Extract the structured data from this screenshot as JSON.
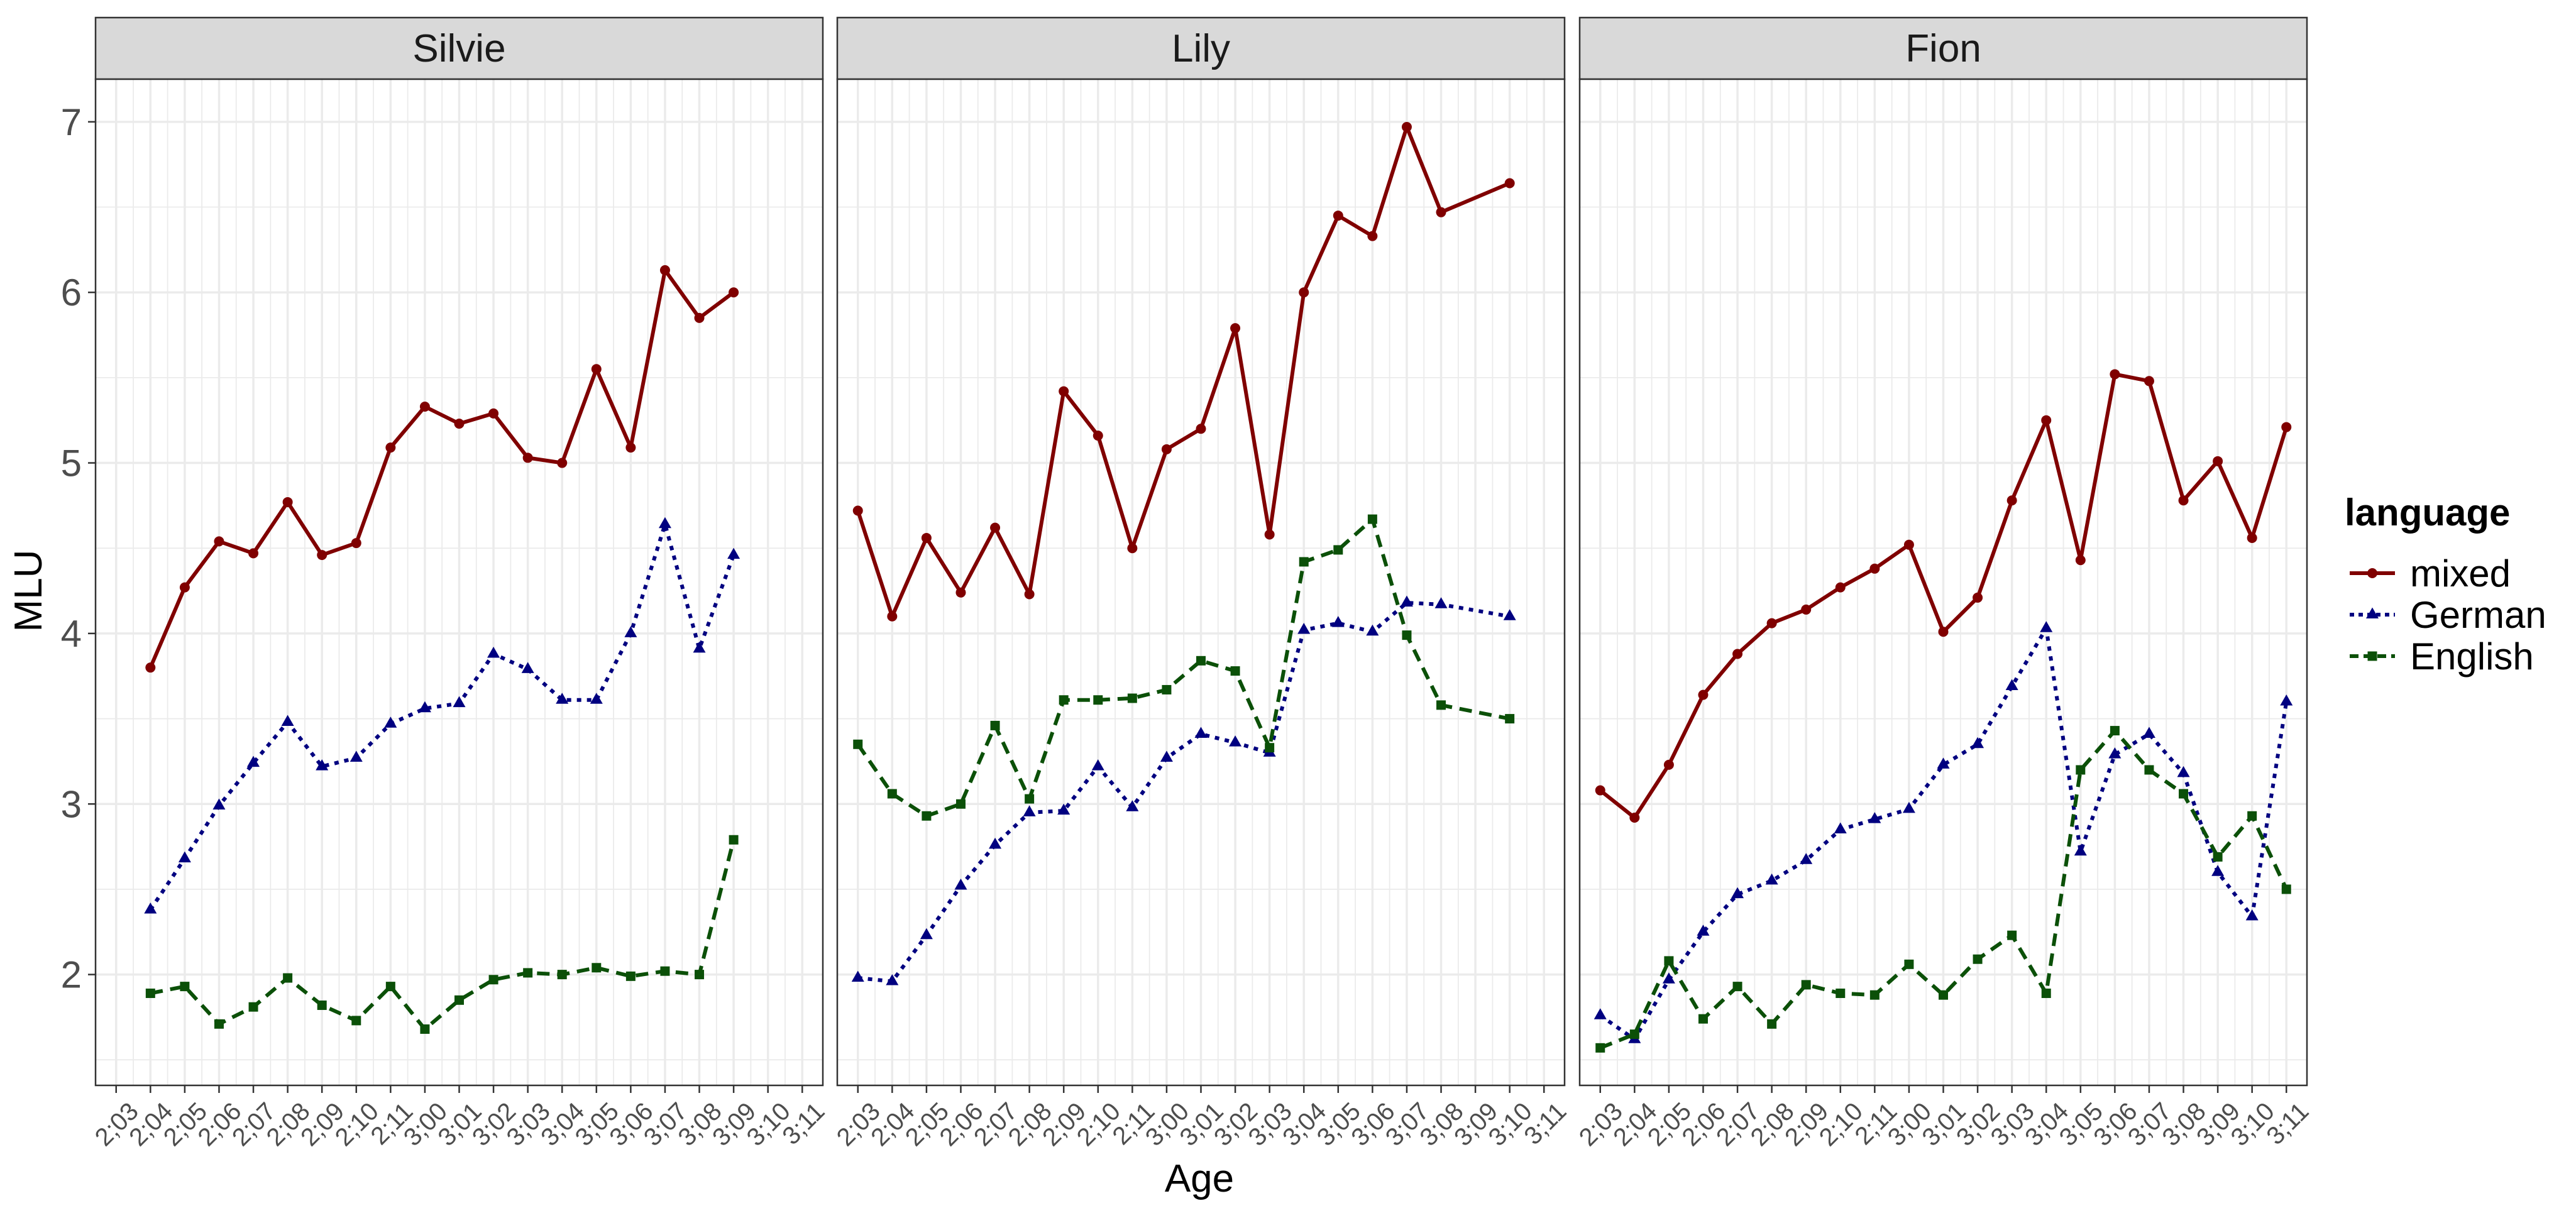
{
  "chart_data": {
    "type": "line",
    "facets": [
      "Silvie",
      "Lily",
      "Fion"
    ],
    "x_categories": [
      "2;03",
      "2;04",
      "2;05",
      "2;06",
      "2;07",
      "2;08",
      "2;09",
      "2;10",
      "2;11",
      "3;00",
      "3;01",
      "3;02",
      "3;03",
      "3;04",
      "3;05",
      "3;06",
      "3;07",
      "3;08",
      "3;09",
      "3;10",
      "3;11"
    ],
    "xlabel": "Age",
    "ylabel": "MLU",
    "yticks": [
      2,
      3,
      4,
      5,
      6,
      7
    ],
    "ylim": [
      1.35,
      7.25
    ],
    "grid": true,
    "legend": {
      "title": "language",
      "position": "right",
      "entries": [
        {
          "name": "mixed",
          "color": "#800000",
          "dash": "solid",
          "marker": "circle"
        },
        {
          "name": "German",
          "color": "#000080",
          "dash": "dotted",
          "marker": "triangle"
        },
        {
          "name": "English",
          "color": "#0B5008",
          "dash": "dashed",
          "marker": "square"
        }
      ]
    },
    "panels": [
      {
        "name": "Silvie",
        "series": [
          {
            "name": "mixed",
            "x": [
              "2;04",
              "2;05",
              "2;06",
              "2;07",
              "2;08",
              "2;09",
              "2;10",
              "2;11",
              "3;00",
              "3;01",
              "3;02",
              "3;03",
              "3;04",
              "3;05",
              "3;06",
              "3;07",
              "3;08",
              "3;09"
            ],
            "values": [
              3.8,
              4.27,
              4.54,
              4.47,
              4.77,
              4.46,
              4.53,
              5.09,
              5.33,
              5.23,
              5.29,
              5.03,
              5.0,
              5.55,
              5.09,
              6.13,
              5.85,
              6.0
            ]
          },
          {
            "name": "German",
            "x": [
              "2;04",
              "2;05",
              "2;06",
              "2;07",
              "2;08",
              "2;09",
              "2;10",
              "2;11",
              "3;00",
              "3;01",
              "3;02",
              "3;03",
              "3;04",
              "3;05",
              "3;06",
              "3;07",
              "3;08",
              "3;09"
            ],
            "values": [
              2.38,
              2.68,
              2.99,
              3.24,
              3.48,
              3.22,
              3.27,
              3.47,
              3.56,
              3.59,
              3.88,
              3.79,
              3.61,
              3.61,
              4.0,
              4.64,
              3.91,
              4.46
            ]
          },
          {
            "name": "English",
            "x": [
              "2;04",
              "2;05",
              "2;06",
              "2;07",
              "2;08",
              "2;09",
              "2;10",
              "2;11",
              "3;00",
              "3;01",
              "3;02",
              "3;03",
              "3;04",
              "3;05",
              "3;06",
              "3;07",
              "3;08",
              "3;09"
            ],
            "values": [
              1.89,
              1.93,
              1.71,
              1.81,
              1.98,
              1.82,
              1.73,
              1.93,
              1.68,
              1.85,
              1.97,
              2.01,
              2.0,
              2.04,
              1.99,
              2.02,
              2.0,
              2.79
            ]
          }
        ]
      },
      {
        "name": "Lily",
        "series": [
          {
            "name": "mixed",
            "x": [
              "2;03",
              "2;04",
              "2;05",
              "2;06",
              "2;07",
              "2;08",
              "2;09",
              "2;10",
              "2;11",
              "3;00",
              "3;01",
              "3;02",
              "3;03",
              "3;04",
              "3;05",
              "3;06",
              "3;07",
              "3;08",
              "3;10"
            ],
            "values": [
              4.72,
              4.1,
              4.56,
              4.24,
              4.62,
              4.23,
              5.42,
              5.16,
              4.5,
              5.08,
              5.2,
              5.79,
              4.58,
              6.0,
              6.45,
              6.33,
              6.97,
              6.47,
              6.64
            ]
          },
          {
            "name": "German",
            "x": [
              "2;03",
              "2;04",
              "2;05",
              "2;06",
              "2;07",
              "2;08",
              "2;09",
              "2;10",
              "2;11",
              "3;00",
              "3;01",
              "3;02",
              "3;03",
              "3;04",
              "3;05",
              "3;06",
              "3;07",
              "3;08",
              "3;10"
            ],
            "values": [
              1.98,
              1.96,
              2.23,
              2.52,
              2.76,
              2.95,
              2.96,
              3.22,
              2.98,
              3.27,
              3.41,
              3.36,
              3.3,
              4.02,
              4.06,
              4.01,
              4.18,
              4.17,
              4.1
            ]
          },
          {
            "name": "English",
            "x": [
              "2;03",
              "2;04",
              "2;05",
              "2;06",
              "2;07",
              "2;08",
              "2;09",
              "2;10",
              "2;11",
              "3;00",
              "3;01",
              "3;02",
              "3;03",
              "3;04",
              "3;05",
              "3;06",
              "3;07",
              "3;08",
              "3;10"
            ],
            "values": [
              3.35,
              3.06,
              2.93,
              3.0,
              3.46,
              3.03,
              3.61,
              3.61,
              3.62,
              3.67,
              3.84,
              3.78,
              3.33,
              4.42,
              4.49,
              4.67,
              3.99,
              3.58,
              3.5
            ]
          }
        ]
      },
      {
        "name": "Fion",
        "series": [
          {
            "name": "mixed",
            "x": [
              "2;03",
              "2;04",
              "2;05",
              "2;06",
              "2;07",
              "2;08",
              "2;09",
              "2;10",
              "2;11",
              "3;00",
              "3;01",
              "3;02",
              "3;03",
              "3;04",
              "3;05",
              "3;06",
              "3;07",
              "3;08",
              "3;09",
              "3;10",
              "3;11"
            ],
            "values": [
              3.08,
              2.92,
              3.23,
              3.64,
              3.88,
              4.06,
              4.14,
              4.27,
              4.38,
              4.52,
              4.01,
              4.21,
              4.78,
              5.25,
              4.43,
              5.52,
              5.48,
              4.78,
              5.01,
              4.56,
              5.21
            ]
          },
          {
            "name": "German",
            "x": [
              "2;03",
              "2;04",
              "2;05",
              "2;06",
              "2;07",
              "2;08",
              "2;09",
              "2;10",
              "2;11",
              "3;00",
              "3;01",
              "3;02",
              "3;03",
              "3;04",
              "3;05",
              "3;06",
              "3;07",
              "3;08",
              "3;09",
              "3;10",
              "3;11"
            ],
            "values": [
              1.76,
              1.62,
              1.97,
              2.25,
              2.47,
              2.55,
              2.67,
              2.85,
              2.91,
              2.97,
              3.23,
              3.35,
              3.69,
              4.03,
              2.72,
              3.29,
              3.41,
              3.18,
              2.6,
              2.34,
              3.6
            ]
          },
          {
            "name": "English",
            "x": [
              "2;03",
              "2;04",
              "2;05",
              "2;06",
              "2;07",
              "2;08",
              "2;09",
              "2;10",
              "2;11",
              "3;00",
              "3;01",
              "3;02",
              "3;03",
              "3;04",
              "3;05",
              "3;06",
              "3;07",
              "3;08",
              "3;09",
              "3;10",
              "3;11"
            ],
            "values": [
              1.57,
              1.65,
              2.08,
              1.74,
              1.93,
              1.71,
              1.94,
              1.89,
              1.88,
              2.06,
              1.88,
              2.09,
              2.23,
              1.89,
              3.2,
              3.43,
              3.2,
              3.06,
              2.69,
              2.93,
              2.5
            ]
          }
        ]
      }
    ]
  }
}
